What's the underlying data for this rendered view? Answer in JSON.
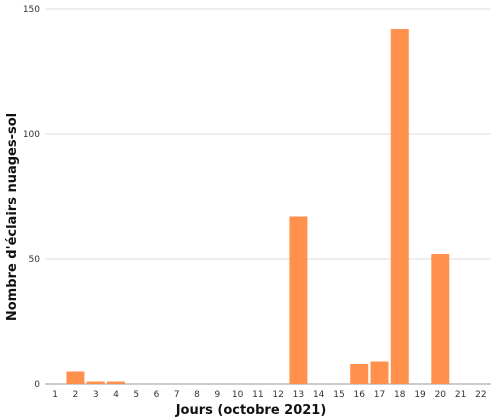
{
  "chart_data": {
    "type": "bar",
    "title": "",
    "xlabel": "Jours (octobre 2021)",
    "ylabel": "Nombre d'éclairs nuages-sol",
    "categories": [
      "1",
      "2",
      "3",
      "4",
      "5",
      "6",
      "7",
      "8",
      "9",
      "10",
      "11",
      "12",
      "13",
      "14",
      "15",
      "16",
      "17",
      "18",
      "19",
      "20",
      "21",
      "22"
    ],
    "values": [
      0,
      5,
      1,
      1,
      0,
      0,
      0,
      0,
      0,
      0,
      0,
      0,
      67,
      0,
      0,
      8,
      9,
      142,
      0,
      52,
      0,
      0
    ],
    "ylim": [
      0,
      150
    ],
    "yticks": [
      "0",
      "50",
      "100",
      "150"
    ],
    "bar_color": "#FF914D",
    "grid": true,
    "legend": "none"
  }
}
